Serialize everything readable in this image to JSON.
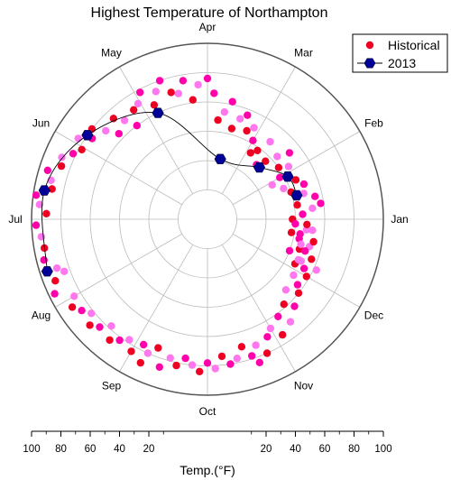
{
  "chart_data": {
    "type": "polar-scatter",
    "title": "Highest Temperature of Northampton",
    "angular_axis": {
      "labels": [
        "Jan",
        "Feb",
        "Mar",
        "Apr",
        "May",
        "Jun",
        "Jul",
        "Aug",
        "Sep",
        "Oct",
        "Nov",
        "Dec"
      ],
      "start_label": "Jan",
      "start_at": "right",
      "direction": "counterclockwise"
    },
    "radial_axis": {
      "label": "Temp.(°F)",
      "range": [
        0,
        100
      ],
      "center_offset": 20,
      "ticks": [
        20,
        40,
        60,
        80,
        100
      ],
      "tick_labels_left": [
        "100",
        "80",
        "60",
        "40",
        "20"
      ],
      "tick_labels_right": [
        "20",
        "40",
        "60",
        "80",
        "100"
      ],
      "grid": true
    },
    "legend": {
      "position": "top-right",
      "entries": [
        "Historical",
        "2013"
      ]
    },
    "series": [
      {
        "name": "Historical",
        "type": "scatter",
        "colors": [
          "#ee0022",
          "#ff00aa",
          "#ff77ee"
        ],
        "points": [
          {
            "angle": 0,
            "r": 38
          },
          {
            "angle": 3,
            "r": 45
          },
          {
            "angle": 6,
            "r": 52
          },
          {
            "angle": 9,
            "r": 42
          },
          {
            "angle": 12,
            "r": 55
          },
          {
            "angle": 15,
            "r": 48
          },
          {
            "angle": 18,
            "r": 40
          },
          {
            "angle": 20,
            "r": 50
          },
          {
            "angle": 22,
            "r": 36
          },
          {
            "angle": 24,
            "r": 46
          },
          {
            "angle": -3,
            "r": 40
          },
          {
            "angle": -6,
            "r": 48
          },
          {
            "angle": -9,
            "r": 38
          },
          {
            "angle": -12,
            "r": 44
          },
          {
            "angle": -15,
            "r": 52
          },
          {
            "angle": -18,
            "r": 46
          },
          {
            "angle": -21,
            "r": 40
          },
          {
            "angle": -24,
            "r": 50
          },
          {
            "angle": -27,
            "r": 47
          },
          {
            "angle": 30,
            "r": 37
          },
          {
            "angle": 33,
            "r": 46
          },
          {
            "angle": 36,
            "r": 40
          },
          {
            "angle": 39,
            "r": 52
          },
          {
            "angle": 42,
            "r": 44
          },
          {
            "angle": 45,
            "r": 36
          },
          {
            "angle": 48,
            "r": 30
          },
          {
            "angle": 51,
            "r": 48
          },
          {
            "angle": 54,
            "r": 38
          },
          {
            "angle": 60,
            "r": 42
          },
          {
            "angle": 63,
            "r": 50
          },
          {
            "angle": 66,
            "r": 46
          },
          {
            "angle": 69,
            "r": 56
          },
          {
            "angle": 72,
            "r": 52
          },
          {
            "angle": 75,
            "r": 44
          },
          {
            "angle": 78,
            "r": 62
          },
          {
            "angle": 81,
            "r": 54
          },
          {
            "angle": 84,
            "r": 48
          },
          {
            "angle": 87,
            "r": 66
          },
          {
            "angle": 94,
            "r": 72
          },
          {
            "angle": 97,
            "r": 62
          },
          {
            "angle": 100,
            "r": 76
          },
          {
            "angle": 103,
            "r": 68
          },
          {
            "angle": 106,
            "r": 70
          },
          {
            "angle": 109,
            "r": 80
          },
          {
            "angle": 112,
            "r": 74
          },
          {
            "angle": 115,
            "r": 66
          },
          {
            "angle": 118,
            "r": 78
          },
          {
            "angle": 121,
            "r": 72
          },
          {
            "angle": 124,
            "r": 70
          },
          {
            "angle": 127,
            "r": 60
          },
          {
            "angle": 130,
            "r": 68
          },
          {
            "angle": 133,
            "r": 74
          },
          {
            "angle": 136,
            "r": 64
          },
          {
            "angle": 139,
            "r": 72
          },
          {
            "angle": 142,
            "r": 80
          },
          {
            "angle": 145,
            "r": 76
          },
          {
            "angle": 148,
            "r": 84
          },
          {
            "angle": 151,
            "r": 78
          },
          {
            "angle": 154,
            "r": 82
          },
          {
            "angle": 157,
            "r": 88
          },
          {
            "angle": 160,
            "r": 86
          },
          {
            "angle": 163,
            "r": 94
          },
          {
            "angle": 166,
            "r": 90
          },
          {
            "angle": 169,
            "r": 88
          },
          {
            "angle": 172,
            "r": 98
          },
          {
            "angle": 175,
            "r": 95
          },
          {
            "angle": 178,
            "r": 90
          },
          {
            "angle": 182,
            "r": 97
          },
          {
            "angle": 186,
            "r": 94
          },
          {
            "angle": 190,
            "r": 93
          },
          {
            "angle": 194,
            "r": 95
          },
          {
            "angle": 198,
            "r": 88
          },
          {
            "angle": 202,
            "r": 92
          },
          {
            "angle": 206,
            "r": 96
          },
          {
            "angle": 210,
            "r": 85
          },
          {
            "angle": 213,
            "r": 90
          },
          {
            "angle": 216,
            "r": 86
          },
          {
            "angle": 219,
            "r": 82
          },
          {
            "angle": 222,
            "r": 88
          },
          {
            "angle": 225,
            "r": 84
          },
          {
            "angle": 228,
            "r": 78
          },
          {
            "angle": 231,
            "r": 86
          },
          {
            "angle": 234,
            "r": 82
          },
          {
            "angle": 237,
            "r": 78
          },
          {
            "angle": 240,
            "r": 84
          },
          {
            "angle": 243,
            "r": 76
          },
          {
            "angle": 246,
            "r": 80
          },
          {
            "angle": 249,
            "r": 74
          },
          {
            "angle": 252,
            "r": 86
          },
          {
            "angle": 255,
            "r": 78
          },
          {
            "angle": 258,
            "r": 82
          },
          {
            "angle": 261,
            "r": 76
          },
          {
            "angle": 264,
            "r": 80
          },
          {
            "angle": 267,
            "r": 84
          },
          {
            "angle": 270,
            "r": 78
          },
          {
            "angle": 273,
            "r": 82
          },
          {
            "angle": 276,
            "r": 74
          },
          {
            "angle": 279,
            "r": 80
          },
          {
            "angle": 282,
            "r": 77
          },
          {
            "angle": 285,
            "r": 70
          },
          {
            "angle": 288,
            "r": 78
          },
          {
            "angle": 291,
            "r": 72
          },
          {
            "angle": 294,
            "r": 80
          },
          {
            "angle": 297,
            "r": 70
          },
          {
            "angle": 300,
            "r": 66
          },
          {
            "angle": 303,
            "r": 74
          },
          {
            "angle": 306,
            "r": 62
          },
          {
            "angle": 309,
            "r": 70
          },
          {
            "angle": 312,
            "r": 58
          },
          {
            "angle": 315,
            "r": 64
          },
          {
            "angle": 318,
            "r": 52
          },
          {
            "angle": 321,
            "r": 60
          },
          {
            "angle": 324,
            "r": 56
          },
          {
            "angle": 327,
            "r": 50
          },
          {
            "angle": 330,
            "r": 58
          },
          {
            "angle": 333,
            "r": 54
          },
          {
            "angle": 336,
            "r": 48
          },
          {
            "angle": 339,
            "r": 56
          },
          {
            "angle": 342,
            "r": 50
          },
          {
            "angle": 345,
            "r": 46
          },
          {
            "angle": 348,
            "r": 54
          },
          {
            "angle": 351,
            "r": 44
          },
          {
            "angle": 354,
            "r": 52
          },
          {
            "angle": 357,
            "r": 48
          },
          {
            "angle": 8,
            "r": 58
          },
          {
            "angle": 28,
            "r": 30
          },
          {
            "angle": 57,
            "r": 34
          },
          {
            "angle": 90,
            "r": 76
          },
          {
            "angle": 200,
            "r": 84
          },
          {
            "angle": 245,
            "r": 88
          },
          {
            "angle": 290,
            "r": 84
          },
          {
            "angle": 335,
            "r": 62
          }
        ]
      },
      {
        "name": "2013",
        "type": "line",
        "marker": "hexagon",
        "color": "#000099",
        "points": [
          {
            "angle": 15,
            "r": 43
          },
          {
            "angle": 28,
            "r": 42
          },
          {
            "angle": 45,
            "r": 30
          },
          {
            "angle": 78,
            "r": 22
          },
          {
            "angle": 115,
            "r": 60
          },
          {
            "angle": 145,
            "r": 80
          },
          {
            "angle": 170,
            "r": 93
          },
          {
            "angle": 198,
            "r": 95
          }
        ]
      }
    ]
  }
}
